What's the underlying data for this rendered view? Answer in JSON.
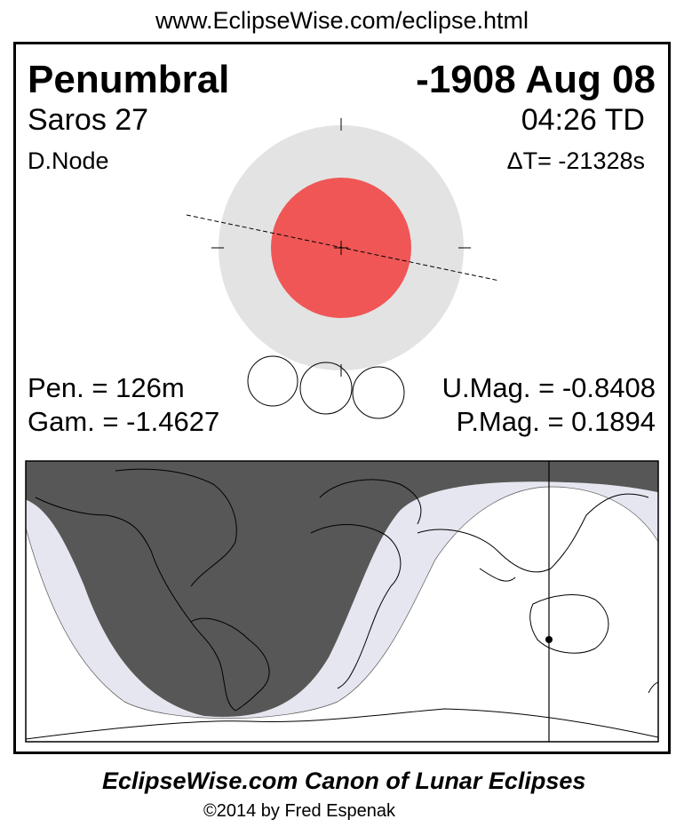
{
  "header_url": "www.EclipseWise.com/eclipse.html",
  "eclipse": {
    "type": "Penumbral",
    "date": "-1908 Aug 08",
    "saros": "Saros  27",
    "time": "04:26 TD",
    "node": "D.Node",
    "delta_t": "ΔT= -21328s",
    "pen_duration": "Pen. = 126m",
    "gamma": "Gam. = -1.4627",
    "umbral_mag": "U.Mag. = -0.8408",
    "penumbral_mag": "P.Mag. = 0.1894"
  },
  "colors": {
    "penumbra": "#e3e3e3",
    "umbra": "#f05656",
    "night": "#575757",
    "penumbral_zone": "#e6e6f0"
  },
  "footer": {
    "title": "EclipseWise.com Canon of Lunar Eclipses",
    "copyright": "©2014 by Fred Espenak"
  }
}
